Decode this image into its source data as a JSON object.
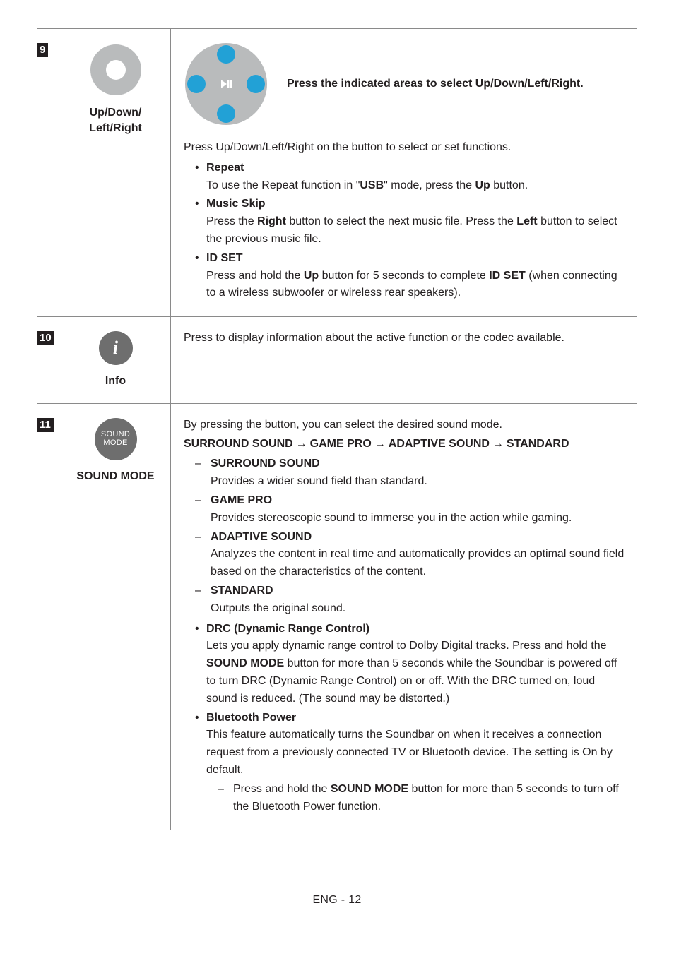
{
  "rows": [
    {
      "num": "9",
      "icon_label": "Up/Down/\nLeft/Right",
      "hero_text": "Press the indicated areas to select Up/Down/Left/Right.",
      "intro": "Press Up/Down/Left/Right on the button to select or set functions.",
      "bullets": [
        {
          "title": "Repeat",
          "body_pre": "To use the Repeat function in \"",
          "body_bold1": "USB",
          "body_mid": "\" mode, press the ",
          "body_bold2": "Up",
          "body_post": " button."
        },
        {
          "title": "Music Skip",
          "body_pre": "Press the ",
          "body_bold1": "Right",
          "body_mid": " button to select the next music file. Press the ",
          "body_bold2": "Left",
          "body_post": " button to select the previous music file."
        },
        {
          "title": "ID SET",
          "body_pre": "Press and hold the ",
          "body_bold1": "Up",
          "body_mid": " button for 5 seconds to complete ",
          "body_bold2": "ID SET",
          "body_post": " (when connecting to a wireless subwoofer or wireless rear speakers)."
        }
      ],
      "dpad_small": {
        "fill": "#b9bbbc",
        "dot": "#ffffff",
        "r": 36
      },
      "dpad_large": {
        "fill": "#b9bbbc",
        "hot": "#22a1d6",
        "icon": "#ffffff",
        "r": 58
      }
    },
    {
      "num": "10",
      "icon_label": "Info",
      "info_text": "Press to display information about the active function or the codec available.",
      "info_circle": {
        "bg": "#6e6e6e",
        "fg": "#ffffff"
      }
    },
    {
      "num": "11",
      "icon_label": "SOUND MODE",
      "sound_line1": "SOUND",
      "sound_line2": "MODE",
      "desc_intro": "By pressing the button, you can select the desired sound mode.",
      "seq": [
        "SURROUND SOUND",
        "GAME PRO",
        "ADAPTIVE SOUND",
        "STANDARD"
      ],
      "modes": [
        {
          "name": "SURROUND SOUND",
          "desc": "Provides a wider sound field than standard."
        },
        {
          "name": "GAME PRO",
          "desc": "Provides stereoscopic sound to immerse you in the action while gaming."
        },
        {
          "name": "ADAPTIVE SOUND",
          "desc": "Analyzes the content in real time and automatically provides an optimal sound field based on the characteristics of the content."
        },
        {
          "name": "STANDARD",
          "desc": "Outputs the original sound."
        }
      ],
      "extra": [
        {
          "title": "DRC (Dynamic Range Control)",
          "pre": "Lets you apply dynamic range control to Dolby Digital tracks. Press and hold the ",
          "bold": "SOUND MODE",
          "post": " button for more than 5 seconds while the Soundbar is powered off to turn DRC (Dynamic Range Control) on or off. With the DRC turned on, loud sound is reduced. (The sound may be distorted.)"
        },
        {
          "title": "Bluetooth Power",
          "body": "This feature automatically turns the Soundbar on when it receives a connection request from a previously connected TV or Bluetooth device. The setting is On by default.",
          "sub_pre": "Press and hold the ",
          "sub_bold": "SOUND MODE",
          "sub_post": " button for more than 5 seconds to turn off the Bluetooth Power function."
        }
      ]
    }
  ],
  "footer": "ENG - 12"
}
